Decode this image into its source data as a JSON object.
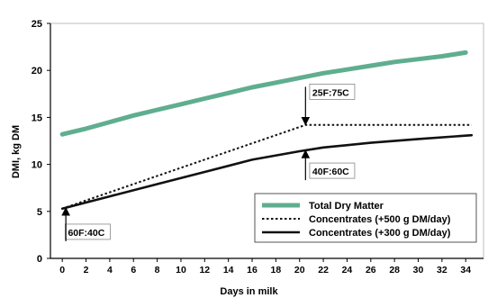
{
  "chart_data": {
    "type": "line",
    "xlabel": "Days in milk",
    "ylabel": "DMI, kg DM",
    "xlim": [
      -1,
      35.5
    ],
    "ylim": [
      0,
      25
    ],
    "x_ticks": [
      0,
      2,
      4,
      6,
      8,
      10,
      12,
      14,
      16,
      18,
      20,
      22,
      24,
      26,
      28,
      30,
      32,
      34
    ],
    "y_ticks": [
      0,
      5,
      10,
      15,
      20,
      25
    ],
    "grid": "none",
    "legend_position": "bottom-right",
    "series": [
      {
        "name": "Total Dry Matter",
        "style": "thick",
        "color": "#5fae8f",
        "x": [
          0,
          2,
          4,
          6,
          8,
          10,
          12,
          14,
          16,
          18,
          20,
          22,
          24,
          26,
          28,
          30,
          32,
          34
        ],
        "y": [
          13.2,
          13.8,
          14.5,
          15.2,
          15.8,
          16.4,
          17.0,
          17.6,
          18.2,
          18.7,
          19.2,
          19.7,
          20.1,
          20.5,
          20.9,
          21.2,
          21.5,
          21.9
        ]
      },
      {
        "name": "Concentrates (+500 g DM/day)",
        "style": "dotted",
        "color": "#111111",
        "x": [
          0,
          20.5,
          34.5
        ],
        "y": [
          5.3,
          14.2,
          14.2
        ]
      },
      {
        "name": "Concentrates (+300 g DM/day)",
        "style": "solid",
        "color": "#111111",
        "x": [
          0,
          4,
          8,
          12,
          16,
          20,
          22,
          26,
          30,
          34.5
        ],
        "y": [
          5.3,
          6.6,
          7.9,
          9.2,
          10.5,
          11.4,
          11.8,
          12.3,
          12.7,
          13.1
        ]
      }
    ],
    "annotations": [
      {
        "text": "60F:40C",
        "x": 0.3,
        "y": 5.3,
        "label_x": 0.4,
        "label_y": 2.4
      },
      {
        "text": "25F:75C",
        "x": 20.5,
        "y": 14.3,
        "label_x": 21.0,
        "label_y": 17.3
      },
      {
        "text": "40F:60C",
        "x": 20.5,
        "y": 11.4,
        "label_x": 21.0,
        "label_y": 8.9
      }
    ]
  }
}
